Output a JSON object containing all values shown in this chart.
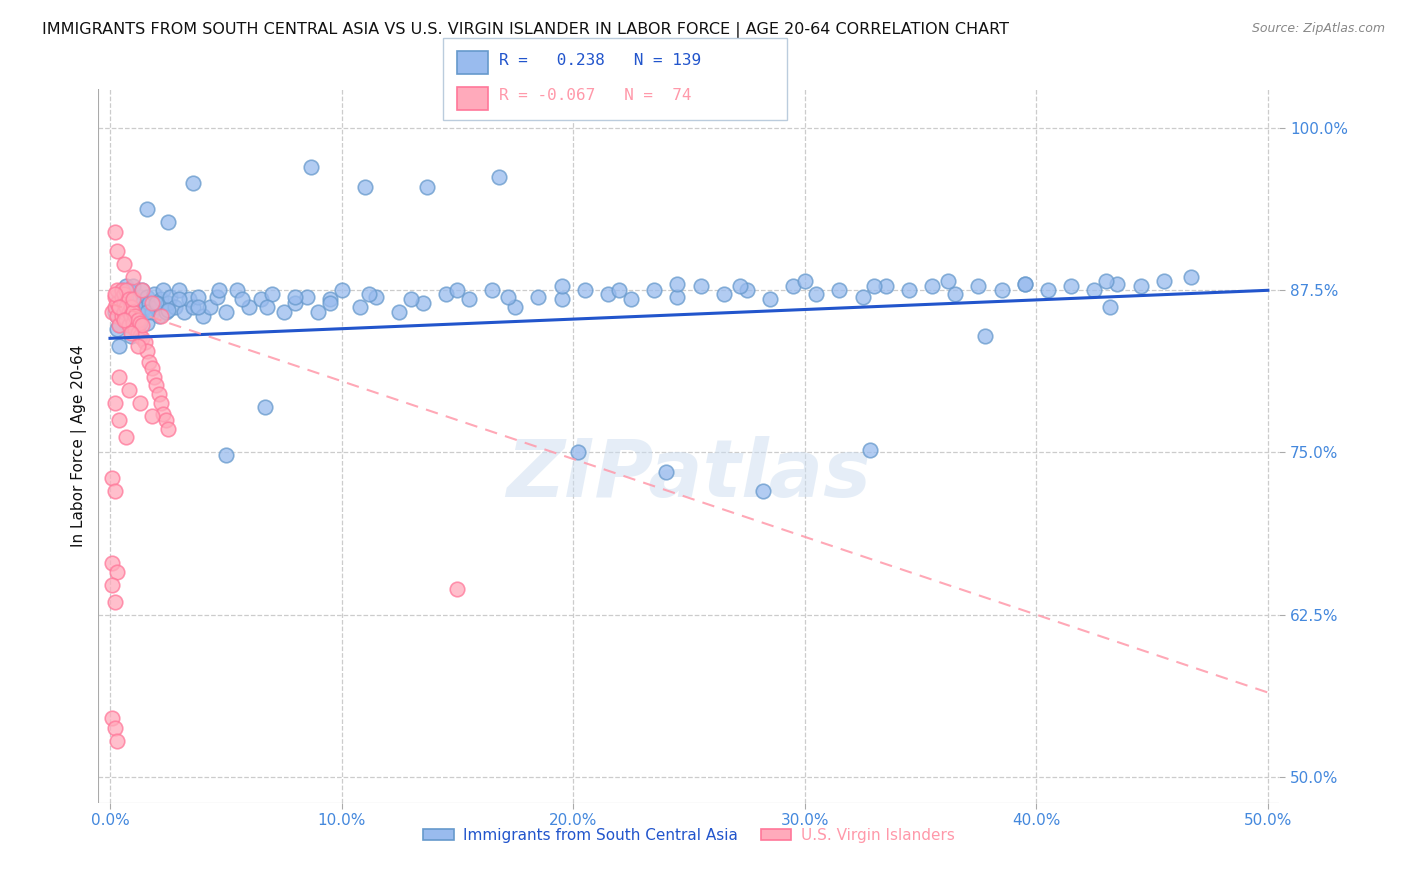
{
  "title": "IMMIGRANTS FROM SOUTH CENTRAL ASIA VS U.S. VIRGIN ISLANDER IN LABOR FORCE | AGE 20-64 CORRELATION CHART",
  "source": "Source: ZipAtlas.com",
  "xlabel_ticks": [
    "0.0%",
    "10.0%",
    "20.0%",
    "30.0%",
    "40.0%",
    "50.0%"
  ],
  "ylabel_label": "In Labor Force | Age 20-64",
  "ylabel_ticks": [
    "100.0%",
    "87.5%",
    "75.0%",
    "62.5%",
    "50.0%"
  ],
  "ylabel_values": [
    1.0,
    0.875,
    0.75,
    0.625,
    0.5
  ],
  "xlabel_values": [
    0.0,
    0.1,
    0.2,
    0.3,
    0.4,
    0.5
  ],
  "xlim": [
    -0.005,
    0.505
  ],
  "ylim": [
    0.48,
    1.03
  ],
  "blue_R": 0.238,
  "blue_N": 139,
  "pink_R": -0.067,
  "pink_N": 74,
  "legend_label_blue": "Immigrants from South Central Asia",
  "legend_label_pink": "U.S. Virgin Islanders",
  "blue_scatter_color": "#99BBEE",
  "pink_scatter_color": "#FFAABB",
  "blue_edge_color": "#6699CC",
  "pink_edge_color": "#FF7799",
  "blue_line_color": "#2255CC",
  "pink_line_color": "#FF99AA",
  "watermark": "ZIPatlas",
  "title_color": "#111111",
  "ylabel_color": "#111111",
  "tick_label_color": "#4488DD",
  "grid_color": "#CCCCCC",
  "background_color": "#FFFFFF",
  "blue_trend_x0": 0.0,
  "blue_trend_x1": 0.5,
  "blue_trend_y0": 0.838,
  "blue_trend_y1": 0.875,
  "pink_trend_x0": 0.0,
  "pink_trend_x1": 0.5,
  "pink_trend_y0": 0.865,
  "pink_trend_y1": 0.565,
  "blue_scatter_x": [
    0.002,
    0.003,
    0.003,
    0.004,
    0.004,
    0.005,
    0.005,
    0.005,
    0.006,
    0.006,
    0.007,
    0.007,
    0.007,
    0.008,
    0.008,
    0.008,
    0.009,
    0.009,
    0.01,
    0.01,
    0.01,
    0.011,
    0.011,
    0.012,
    0.012,
    0.013,
    0.013,
    0.014,
    0.014,
    0.015,
    0.015,
    0.016,
    0.016,
    0.017,
    0.018,
    0.019,
    0.02,
    0.021,
    0.022,
    0.023,
    0.024,
    0.025,
    0.026,
    0.028,
    0.03,
    0.032,
    0.034,
    0.036,
    0.038,
    0.04,
    0.043,
    0.046,
    0.05,
    0.055,
    0.06,
    0.065,
    0.07,
    0.075,
    0.08,
    0.085,
    0.09,
    0.095,
    0.1,
    0.108,
    0.115,
    0.125,
    0.135,
    0.145,
    0.155,
    0.165,
    0.175,
    0.185,
    0.195,
    0.205,
    0.215,
    0.225,
    0.235,
    0.245,
    0.255,
    0.265,
    0.275,
    0.285,
    0.295,
    0.305,
    0.315,
    0.325,
    0.335,
    0.345,
    0.355,
    0.365,
    0.375,
    0.385,
    0.395,
    0.405,
    0.415,
    0.425,
    0.435,
    0.445,
    0.455,
    0.003,
    0.006,
    0.009,
    0.012,
    0.016,
    0.02,
    0.025,
    0.03,
    0.038,
    0.047,
    0.057,
    0.068,
    0.08,
    0.095,
    0.112,
    0.13,
    0.15,
    0.172,
    0.195,
    0.22,
    0.245,
    0.272,
    0.3,
    0.33,
    0.362,
    0.395,
    0.43,
    0.467,
    0.004,
    0.009,
    0.016,
    0.025,
    0.036,
    0.05,
    0.067,
    0.087,
    0.11,
    0.137,
    0.168,
    0.202,
    0.24,
    0.282,
    0.328,
    0.378,
    0.432
  ],
  "blue_scatter_y": [
    0.858,
    0.862,
    0.855,
    0.87,
    0.848,
    0.875,
    0.858,
    0.865,
    0.872,
    0.855,
    0.865,
    0.878,
    0.85,
    0.862,
    0.875,
    0.855,
    0.868,
    0.852,
    0.87,
    0.862,
    0.878,
    0.855,
    0.868,
    0.862,
    0.85,
    0.87,
    0.855,
    0.865,
    0.875,
    0.858,
    0.862,
    0.87,
    0.85,
    0.865,
    0.858,
    0.872,
    0.862,
    0.855,
    0.868,
    0.875,
    0.858,
    0.865,
    0.87,
    0.862,
    0.875,
    0.858,
    0.868,
    0.862,
    0.87,
    0.855,
    0.862,
    0.87,
    0.858,
    0.875,
    0.862,
    0.868,
    0.872,
    0.858,
    0.865,
    0.87,
    0.858,
    0.868,
    0.875,
    0.862,
    0.87,
    0.858,
    0.865,
    0.872,
    0.868,
    0.875,
    0.862,
    0.87,
    0.868,
    0.875,
    0.872,
    0.868,
    0.875,
    0.87,
    0.878,
    0.872,
    0.875,
    0.868,
    0.878,
    0.872,
    0.875,
    0.87,
    0.878,
    0.875,
    0.878,
    0.872,
    0.878,
    0.875,
    0.88,
    0.875,
    0.878,
    0.875,
    0.88,
    0.878,
    0.882,
    0.845,
    0.855,
    0.862,
    0.85,
    0.858,
    0.865,
    0.86,
    0.868,
    0.862,
    0.875,
    0.868,
    0.862,
    0.87,
    0.865,
    0.872,
    0.868,
    0.875,
    0.87,
    0.878,
    0.875,
    0.88,
    0.878,
    0.882,
    0.878,
    0.882,
    0.88,
    0.882,
    0.885,
    0.832,
    0.84,
    0.938,
    0.928,
    0.958,
    0.748,
    0.785,
    0.97,
    0.955,
    0.955,
    0.962,
    0.75,
    0.735,
    0.72,
    0.752,
    0.84,
    0.862
  ],
  "pink_scatter_x": [
    0.001,
    0.002,
    0.002,
    0.003,
    0.003,
    0.003,
    0.004,
    0.004,
    0.005,
    0.005,
    0.005,
    0.006,
    0.006,
    0.006,
    0.007,
    0.007,
    0.007,
    0.008,
    0.008,
    0.008,
    0.009,
    0.009,
    0.01,
    0.01,
    0.01,
    0.011,
    0.011,
    0.012,
    0.012,
    0.013,
    0.013,
    0.014,
    0.014,
    0.015,
    0.016,
    0.017,
    0.018,
    0.019,
    0.02,
    0.021,
    0.022,
    0.023,
    0.024,
    0.025,
    0.003,
    0.006,
    0.01,
    0.014,
    0.018,
    0.022,
    0.004,
    0.008,
    0.013,
    0.018,
    0.002,
    0.004,
    0.006,
    0.009,
    0.012,
    0.002,
    0.004,
    0.007,
    0.002,
    0.15,
    0.001,
    0.002,
    0.001,
    0.003,
    0.001,
    0.002,
    0.001,
    0.002,
    0.003
  ],
  "pink_scatter_y": [
    0.858,
    0.862,
    0.87,
    0.855,
    0.865,
    0.875,
    0.848,
    0.862,
    0.87,
    0.855,
    0.875,
    0.858,
    0.865,
    0.872,
    0.852,
    0.862,
    0.875,
    0.848,
    0.858,
    0.868,
    0.855,
    0.862,
    0.85,
    0.858,
    0.868,
    0.845,
    0.855,
    0.842,
    0.852,
    0.84,
    0.85,
    0.838,
    0.848,
    0.835,
    0.828,
    0.82,
    0.815,
    0.808,
    0.802,
    0.795,
    0.788,
    0.78,
    0.775,
    0.768,
    0.905,
    0.895,
    0.885,
    0.875,
    0.865,
    0.855,
    0.808,
    0.798,
    0.788,
    0.778,
    0.872,
    0.862,
    0.852,
    0.842,
    0.832,
    0.788,
    0.775,
    0.762,
    0.92,
    0.645,
    0.73,
    0.72,
    0.665,
    0.658,
    0.648,
    0.635,
    0.545,
    0.538,
    0.528
  ]
}
